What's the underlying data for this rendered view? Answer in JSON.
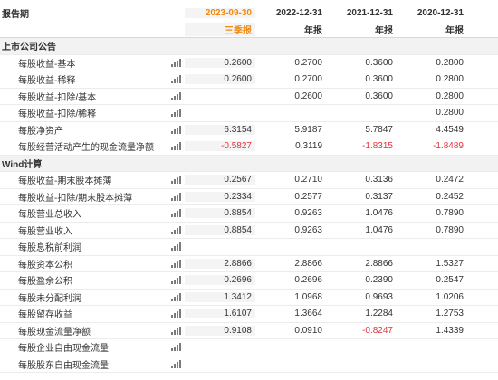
{
  "header": {
    "label": "报告期",
    "periods": [
      "2023-09-30",
      "2022-12-31",
      "2021-12-31",
      "2020-12-31"
    ],
    "types": [
      "三季报",
      "年报",
      "年报",
      "年报"
    ]
  },
  "sections": [
    {
      "title": "上市公司公告",
      "rows": [
        {
          "label": "每股收益-基本",
          "chart_icon": "bar-chart-icon",
          "values": [
            "0.2600",
            "0.2700",
            "0.3600",
            "0.2800"
          ],
          "neg": [
            false,
            false,
            false,
            false
          ]
        },
        {
          "label": "每股收益-稀释",
          "chart_icon": "bar-chart-icon",
          "values": [
            "0.2600",
            "0.2700",
            "0.3600",
            "0.2800"
          ],
          "neg": [
            false,
            false,
            false,
            false
          ]
        },
        {
          "label": "每股收益-扣除/基本",
          "chart_icon": "bar-chart-icon",
          "values": [
            "",
            "0.2600",
            "0.3600",
            "0.2800"
          ],
          "neg": [
            false,
            false,
            false,
            false
          ]
        },
        {
          "label": "每股收益-扣除/稀释",
          "chart_icon": "bar-chart-icon",
          "values": [
            "",
            "",
            "",
            "0.2800"
          ],
          "neg": [
            false,
            false,
            false,
            false
          ]
        },
        {
          "label": "每股净资产",
          "chart_icon": "bar-chart-icon",
          "values": [
            "6.3154",
            "5.9187",
            "5.7847",
            "4.4549"
          ],
          "neg": [
            false,
            false,
            false,
            false
          ]
        },
        {
          "label": "每股经营活动产生的现金流量净额",
          "chart_icon": "bar-chart-icon",
          "values": [
            "-0.5827",
            "0.3119",
            "-1.8315",
            "-1.8489"
          ],
          "neg": [
            true,
            false,
            true,
            true
          ]
        }
      ]
    },
    {
      "title": "Wind计算",
      "rows": [
        {
          "label": "每股收益-期末股本摊薄",
          "chart_icon": "bar-chart-icon",
          "values": [
            "0.2567",
            "0.2710",
            "0.3136",
            "0.2472"
          ],
          "neg": [
            false,
            false,
            false,
            false
          ]
        },
        {
          "label": "每股收益-扣除/期末股本摊薄",
          "chart_icon": "bar-chart-icon",
          "values": [
            "0.2334",
            "0.2577",
            "0.3137",
            "0.2452"
          ],
          "neg": [
            false,
            false,
            false,
            false
          ]
        },
        {
          "label": "每股营业总收入",
          "chart_icon": "bar-chart-icon",
          "values": [
            "0.8854",
            "0.9263",
            "1.0476",
            "0.7890"
          ],
          "neg": [
            false,
            false,
            false,
            false
          ]
        },
        {
          "label": "每股营业收入",
          "chart_icon": "bar-chart-icon",
          "values": [
            "0.8854",
            "0.9263",
            "1.0476",
            "0.7890"
          ],
          "neg": [
            false,
            false,
            false,
            false
          ]
        },
        {
          "label": "每股息税前利润",
          "chart_icon": "bar-chart-icon",
          "values": [
            "",
            "",
            "",
            ""
          ],
          "neg": [
            false,
            false,
            false,
            false
          ]
        },
        {
          "label": "每股资本公积",
          "chart_icon": "bar-chart-icon",
          "values": [
            "2.8866",
            "2.8866",
            "2.8866",
            "1.5327"
          ],
          "neg": [
            false,
            false,
            false,
            false
          ]
        },
        {
          "label": "每股盈余公积",
          "chart_icon": "bar-chart-icon",
          "values": [
            "0.2696",
            "0.2696",
            "0.2390",
            "0.2547"
          ],
          "neg": [
            false,
            false,
            false,
            false
          ]
        },
        {
          "label": "每股未分配利润",
          "chart_icon": "bar-chart-icon",
          "values": [
            "1.3412",
            "1.0968",
            "0.9693",
            "1.0206"
          ],
          "neg": [
            false,
            false,
            false,
            false
          ]
        },
        {
          "label": "每股留存收益",
          "chart_icon": "bar-chart-icon",
          "values": [
            "1.6107",
            "1.3664",
            "1.2284",
            "1.2753"
          ],
          "neg": [
            false,
            false,
            false,
            false
          ]
        },
        {
          "label": "每股现金流量净额",
          "chart_icon": "bar-chart-icon",
          "values": [
            "0.9108",
            "0.0910",
            "-0.8247",
            "1.4339"
          ],
          "neg": [
            false,
            false,
            true,
            false
          ]
        },
        {
          "label": "每股企业自由现金流量",
          "chart_icon": "bar-chart-icon",
          "values": [
            "",
            "",
            "",
            ""
          ],
          "neg": [
            false,
            false,
            false,
            false
          ]
        },
        {
          "label": "每股股东自由现金流量",
          "chart_icon": "bar-chart-icon",
          "values": [
            "",
            "",
            "",
            ""
          ],
          "neg": [
            false,
            false,
            false,
            false
          ]
        }
      ]
    }
  ],
  "colors": {
    "accent_period": "#f08a12",
    "negative": "#e5313a",
    "section_bg": "#f2f2f2",
    "current_col_bg": "#f4f4f4"
  }
}
